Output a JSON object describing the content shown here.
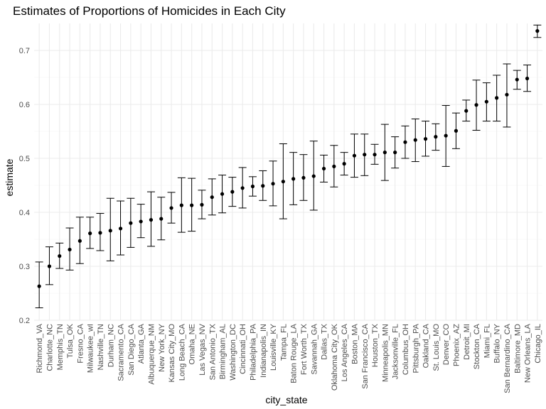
{
  "chart_data": {
    "type": "scatter",
    "title": "Estimates of Proportions of Homicides in Each City",
    "xlabel": "city_state",
    "ylabel": "estimate",
    "ylim": [
      0.2,
      0.75
    ],
    "yticks": [
      0.2,
      0.3,
      0.4,
      0.5,
      0.6,
      0.7
    ],
    "grid": true,
    "legend": "none",
    "points": [
      {
        "city": "Richmond_VA",
        "estimate": 0.263,
        "lower": 0.223,
        "upper": 0.308
      },
      {
        "city": "Charlotte_NC",
        "estimate": 0.3,
        "lower": 0.266,
        "upper": 0.336
      },
      {
        "city": "Memphis_TN",
        "estimate": 0.319,
        "lower": 0.296,
        "upper": 0.343
      },
      {
        "city": "Tulsa_OK",
        "estimate": 0.331,
        "lower": 0.293,
        "upper": 0.371
      },
      {
        "city": "Fresno_CA",
        "estimate": 0.347,
        "lower": 0.305,
        "upper": 0.391
      },
      {
        "city": "Milwaukee_wI",
        "estimate": 0.361,
        "lower": 0.333,
        "upper": 0.391
      },
      {
        "city": "Nashville_TN",
        "estimate": 0.362,
        "lower": 0.329,
        "upper": 0.398
      },
      {
        "city": "Durham_NC",
        "estimate": 0.366,
        "lower": 0.31,
        "upper": 0.426
      },
      {
        "city": "Sacramento_CA",
        "estimate": 0.37,
        "lower": 0.321,
        "upper": 0.421
      },
      {
        "city": "San Diego_CA",
        "estimate": 0.38,
        "lower": 0.335,
        "upper": 0.426
      },
      {
        "city": "Atlanta_GA",
        "estimate": 0.383,
        "lower": 0.353,
        "upper": 0.415
      },
      {
        "city": "Albuquerque_NM",
        "estimate": 0.386,
        "lower": 0.337,
        "upper": 0.438
      },
      {
        "city": "New York_NY",
        "estimate": 0.388,
        "lower": 0.349,
        "upper": 0.428
      },
      {
        "city": "Kansas City_MO",
        "estimate": 0.408,
        "lower": 0.38,
        "upper": 0.437
      },
      {
        "city": "Long Beach_CA",
        "estimate": 0.413,
        "lower": 0.363,
        "upper": 0.464
      },
      {
        "city": "Omaha_NE",
        "estimate": 0.413,
        "lower": 0.365,
        "upper": 0.463
      },
      {
        "city": "Las Vegas_NV",
        "estimate": 0.414,
        "lower": 0.388,
        "upper": 0.441
      },
      {
        "city": "San Antonio_TX",
        "estimate": 0.428,
        "lower": 0.395,
        "upper": 0.462
      },
      {
        "city": "Birmingham_AL",
        "estimate": 0.434,
        "lower": 0.399,
        "upper": 0.469
      },
      {
        "city": "Washington_DC",
        "estimate": 0.438,
        "lower": 0.411,
        "upper": 0.465
      },
      {
        "city": "Cincinnati_OH",
        "estimate": 0.445,
        "lower": 0.408,
        "upper": 0.483
      },
      {
        "city": "Philadelphia_PA",
        "estimate": 0.448,
        "lower": 0.43,
        "upper": 0.466
      },
      {
        "city": "Indianapolis_IN",
        "estimate": 0.449,
        "lower": 0.422,
        "upper": 0.477
      },
      {
        "city": "Louisville_KY",
        "estimate": 0.453,
        "lower": 0.412,
        "upper": 0.495
      },
      {
        "city": "Tampa_FL",
        "estimate": 0.457,
        "lower": 0.388,
        "upper": 0.527
      },
      {
        "city": "Baton Rouge_LA",
        "estimate": 0.462,
        "lower": 0.414,
        "upper": 0.511
      },
      {
        "city": "Fort Worth_TX",
        "estimate": 0.464,
        "lower": 0.422,
        "upper": 0.507
      },
      {
        "city": "Savannah_GA",
        "estimate": 0.467,
        "lower": 0.404,
        "upper": 0.532
      },
      {
        "city": "Dallas_TX",
        "estimate": 0.481,
        "lower": 0.456,
        "upper": 0.506
      },
      {
        "city": "Oklahoma City_OK",
        "estimate": 0.485,
        "lower": 0.447,
        "upper": 0.524
      },
      {
        "city": "Los Angeles_CA",
        "estimate": 0.49,
        "lower": 0.469,
        "upper": 0.511
      },
      {
        "city": "Boston_MA",
        "estimate": 0.505,
        "lower": 0.465,
        "upper": 0.545
      },
      {
        "city": "San Francisco_CA",
        "estimate": 0.507,
        "lower": 0.468,
        "upper": 0.545
      },
      {
        "city": "Houston_TX",
        "estimate": 0.507,
        "lower": 0.489,
        "upper": 0.526
      },
      {
        "city": "Minneapolis_MN",
        "estimate": 0.511,
        "lower": 0.459,
        "upper": 0.563
      },
      {
        "city": "Jacksonville_FL",
        "estimate": 0.511,
        "lower": 0.482,
        "upper": 0.54
      },
      {
        "city": "Columbus_OH",
        "estimate": 0.53,
        "lower": 0.5,
        "upper": 0.56
      },
      {
        "city": "Pittsburgh_PA",
        "estimate": 0.534,
        "lower": 0.494,
        "upper": 0.573
      },
      {
        "city": "Oakland_CA",
        "estimate": 0.536,
        "lower": 0.504,
        "upper": 0.569
      },
      {
        "city": "St. Louis_MO",
        "estimate": 0.54,
        "lower": 0.515,
        "upper": 0.564
      },
      {
        "city": "Denver_CO",
        "estimate": 0.542,
        "lower": 0.485,
        "upper": 0.598
      },
      {
        "city": "Phoenix_AZ",
        "estimate": 0.551,
        "lower": 0.518,
        "upper": 0.584
      },
      {
        "city": "Detroit_MI",
        "estimate": 0.588,
        "lower": 0.569,
        "upper": 0.608
      },
      {
        "city": "Stockton_CA",
        "estimate": 0.599,
        "lower": 0.552,
        "upper": 0.645
      },
      {
        "city": "Miami_FL",
        "estimate": 0.605,
        "lower": 0.569,
        "upper": 0.64
      },
      {
        "city": "Buffalo_NY",
        "estimate": 0.612,
        "lower": 0.569,
        "upper": 0.654
      },
      {
        "city": "San Bernardino_CA",
        "estimate": 0.618,
        "lower": 0.558,
        "upper": 0.675
      },
      {
        "city": "Baltimore_MD",
        "estimate": 0.646,
        "lower": 0.628,
        "upper": 0.663
      },
      {
        "city": "New Orleans_LA",
        "estimate": 0.648,
        "lower": 0.624,
        "upper": 0.673
      },
      {
        "city": "Chicago_IL",
        "estimate": 0.736,
        "lower": 0.724,
        "upper": 0.747
      }
    ]
  }
}
